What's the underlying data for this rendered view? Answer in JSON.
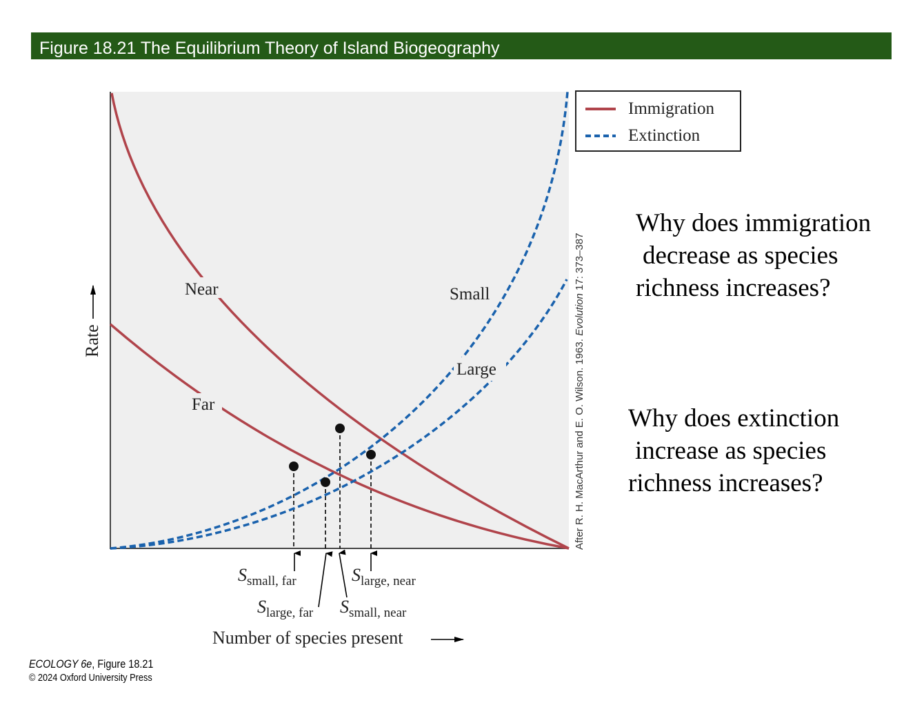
{
  "header": {
    "title": "Figure 18.21  The Equilibrium Theory of Island Biogeography"
  },
  "legend": {
    "immigration": "Immigration",
    "extinction": "Extinction"
  },
  "colors": {
    "immigration": "#b0444b",
    "extinction": "#1a62ad",
    "banner": "#245a17",
    "plot_bg": "#efefef"
  },
  "curves": {
    "near": "Near",
    "far": "Far",
    "small": "Small",
    "large": "Large"
  },
  "axes": {
    "y": "Rate",
    "x": "Number of species present"
  },
  "equilibria": {
    "small_far": {
      "s": "S",
      "sub": "small, far"
    },
    "large_far": {
      "s": "S",
      "sub": "large, far"
    },
    "small_near": {
      "s": "S",
      "sub": "small, near"
    },
    "large_near": {
      "s": "S",
      "sub": "large, near"
    }
  },
  "source": {
    "pre": "After R. H. MacArthur and E. O. Wilson. 1963. ",
    "journal": "Evolution",
    "post": " 17: 373–387"
  },
  "questions": {
    "q1": [
      "Why does immigration",
      "decrease as species",
      "richness increases?"
    ],
    "q2": [
      "Why does extinction",
      "increase as species",
      "richness increases?"
    ]
  },
  "credit": {
    "book": "ECOLOGY 6e",
    "fig": ", Figure 18.21",
    "copyright": "© 2024 Oxford University Press"
  }
}
